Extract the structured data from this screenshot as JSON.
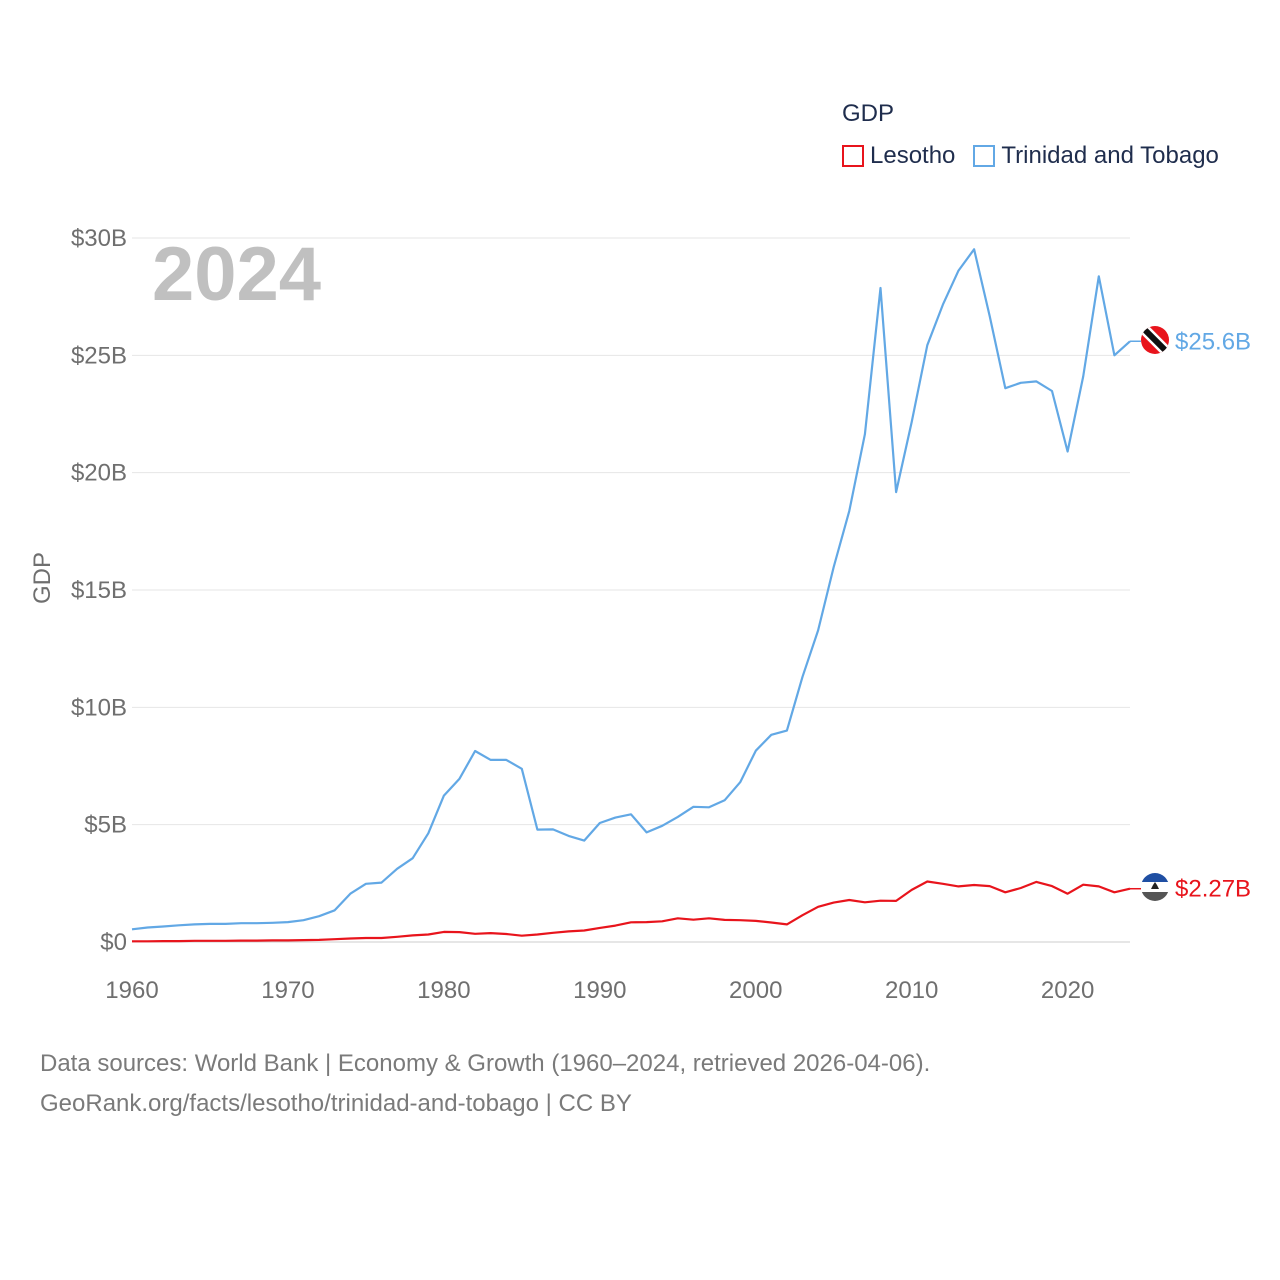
{
  "legend": {
    "title": "GDP",
    "items": [
      {
        "label": "Lesotho",
        "color": "#e8141c"
      },
      {
        "label": "Trinidad and Tobago",
        "color": "#62a8e5"
      }
    ]
  },
  "footer": {
    "line1": "Data sources: World Bank | Economy & Growth (1960–2024, retrieved 2026-04-06).",
    "line2": "GeoRank.org/facts/lesotho/trinidad-and-tobago | CC BY"
  },
  "chart_data": {
    "type": "line",
    "year_label": "2024",
    "ylabel": "GDP",
    "xlabel": "",
    "xlim": [
      1960,
      2024
    ],
    "ylim": [
      0,
      30
    ],
    "y_unit": "billion USD",
    "xticks": [
      1960,
      1970,
      1980,
      1990,
      2000,
      2010,
      2020
    ],
    "yticks": [
      {
        "value": 0,
        "label": "$0"
      },
      {
        "value": 5,
        "label": "$5B"
      },
      {
        "value": 10,
        "label": "$10B"
      },
      {
        "value": 15,
        "label": "$15B"
      },
      {
        "value": 20,
        "label": "$20B"
      },
      {
        "value": 25,
        "label": "$25B"
      },
      {
        "value": 30,
        "label": "$30B"
      }
    ],
    "grid": true,
    "legend_position": "top-right",
    "x": [
      1960,
      1961,
      1962,
      1963,
      1964,
      1965,
      1966,
      1967,
      1968,
      1969,
      1970,
      1971,
      1972,
      1973,
      1974,
      1975,
      1976,
      1977,
      1978,
      1979,
      1980,
      1981,
      1982,
      1983,
      1984,
      1985,
      1986,
      1987,
      1988,
      1989,
      1990,
      1991,
      1992,
      1993,
      1994,
      1995,
      1996,
      1997,
      1998,
      1999,
      2000,
      2001,
      2002,
      2003,
      2004,
      2005,
      2006,
      2007,
      2008,
      2009,
      2010,
      2011,
      2012,
      2013,
      2014,
      2015,
      2016,
      2017,
      2018,
      2019,
      2020,
      2021,
      2022,
      2023,
      2024
    ],
    "series": [
      {
        "name": "Trinidad and Tobago",
        "color": "#62a8e5",
        "end_label": "$25.6B",
        "values": [
          0.54,
          0.62,
          0.66,
          0.71,
          0.75,
          0.77,
          0.77,
          0.8,
          0.8,
          0.82,
          0.85,
          0.93,
          1.1,
          1.35,
          2.06,
          2.48,
          2.53,
          3.12,
          3.57,
          4.63,
          6.24,
          6.96,
          8.14,
          7.76,
          7.76,
          7.38,
          4.79,
          4.8,
          4.52,
          4.32,
          5.07,
          5.3,
          5.44,
          4.67,
          4.95,
          5.33,
          5.76,
          5.74,
          6.04,
          6.81,
          8.15,
          8.83,
          9.01,
          11.3,
          13.28,
          15.98,
          18.37,
          21.64,
          27.87,
          19.17,
          22.16,
          25.43,
          27.16,
          28.61,
          29.52,
          26.67,
          23.6,
          23.83,
          23.89,
          23.48,
          20.9,
          24.1,
          28.37,
          25.0,
          25.6
        ]
      },
      {
        "name": "Lesotho",
        "color": "#e8141c",
        "end_label": "$2.27B",
        "values": [
          0.03,
          0.03,
          0.04,
          0.04,
          0.05,
          0.05,
          0.05,
          0.06,
          0.06,
          0.07,
          0.07,
          0.08,
          0.09,
          0.12,
          0.15,
          0.17,
          0.17,
          0.22,
          0.28,
          0.32,
          0.43,
          0.42,
          0.35,
          0.38,
          0.34,
          0.27,
          0.32,
          0.39,
          0.45,
          0.49,
          0.6,
          0.7,
          0.84,
          0.85,
          0.88,
          1.01,
          0.95,
          1.01,
          0.94,
          0.93,
          0.9,
          0.83,
          0.75,
          1.14,
          1.5,
          1.68,
          1.79,
          1.69,
          1.76,
          1.75,
          2.22,
          2.58,
          2.48,
          2.37,
          2.43,
          2.38,
          2.12,
          2.3,
          2.56,
          2.38,
          2.06,
          2.44,
          2.37,
          2.12,
          2.27
        ]
      }
    ]
  }
}
